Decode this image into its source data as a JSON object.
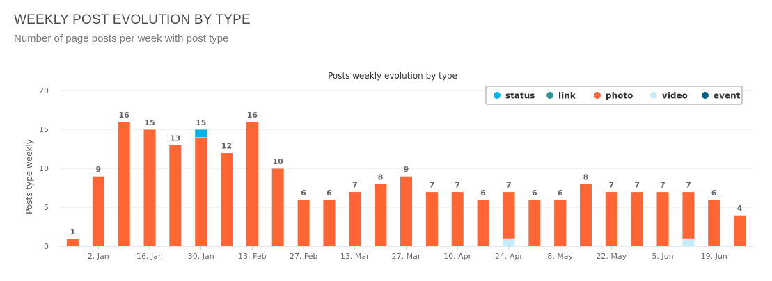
{
  "header": {
    "title": "WEEKLY POST EVOLUTION BY TYPE",
    "subtitle": "Number of page posts per week with post type"
  },
  "chart_data": {
    "type": "bar",
    "stacked": true,
    "title": "Posts weekly evolution by type",
    "ylabel": "Posts type weekly",
    "xlabel": "",
    "ylim": [
      0,
      20
    ],
    "yticks": [
      0,
      5,
      10,
      15,
      20
    ],
    "grid": true,
    "legend_position": "top-right",
    "x_tick_labels": [
      "2. Jan",
      "16. Jan",
      "30. Jan",
      "13. Feb",
      "27. Feb",
      "13. Mar",
      "27. Mar",
      "10. Apr",
      "24. Apr",
      "8. May",
      "22. May",
      "5. Jun",
      "19. Jun"
    ],
    "totals": [
      1,
      9,
      16,
      15,
      13,
      15,
      12,
      16,
      10,
      6,
      6,
      7,
      8,
      9,
      7,
      7,
      6,
      7,
      6,
      6,
      8,
      7,
      7,
      7,
      7,
      6,
      4
    ],
    "series": [
      {
        "name": "status",
        "color": "#00b3e6",
        "values": [
          0,
          0,
          0,
          0,
          0,
          1,
          0,
          0,
          0,
          0,
          0,
          0,
          0,
          0,
          0,
          0,
          0,
          0,
          0,
          0,
          0,
          0,
          0,
          0,
          0,
          0,
          0
        ]
      },
      {
        "name": "link",
        "color": "#2a9696",
        "values": [
          0,
          0,
          0,
          0,
          0,
          0,
          0,
          0,
          0,
          0,
          0,
          0,
          0,
          0,
          0,
          0,
          0,
          0,
          0,
          0,
          0,
          0,
          0,
          0,
          0,
          0,
          0
        ]
      },
      {
        "name": "photo",
        "color": "#ff6633",
        "values": [
          1,
          9,
          16,
          15,
          13,
          14,
          12,
          16,
          10,
          6,
          6,
          7,
          8,
          9,
          7,
          7,
          6,
          6,
          6,
          6,
          8,
          7,
          7,
          7,
          6,
          6,
          4
        ]
      },
      {
        "name": "video",
        "color": "#c5ecf7",
        "values": [
          0,
          0,
          0,
          0,
          0,
          0,
          0,
          0,
          0,
          0,
          0,
          0,
          0,
          0,
          0,
          0,
          0,
          1,
          0,
          0,
          0,
          0,
          0,
          0,
          1,
          0,
          0
        ]
      },
      {
        "name": "event",
        "color": "#045f80",
        "values": [
          0,
          0,
          0,
          0,
          0,
          0,
          0,
          0,
          0,
          0,
          0,
          0,
          0,
          0,
          0,
          0,
          0,
          0,
          0,
          0,
          0,
          0,
          0,
          0,
          0,
          0,
          0
        ]
      }
    ]
  }
}
